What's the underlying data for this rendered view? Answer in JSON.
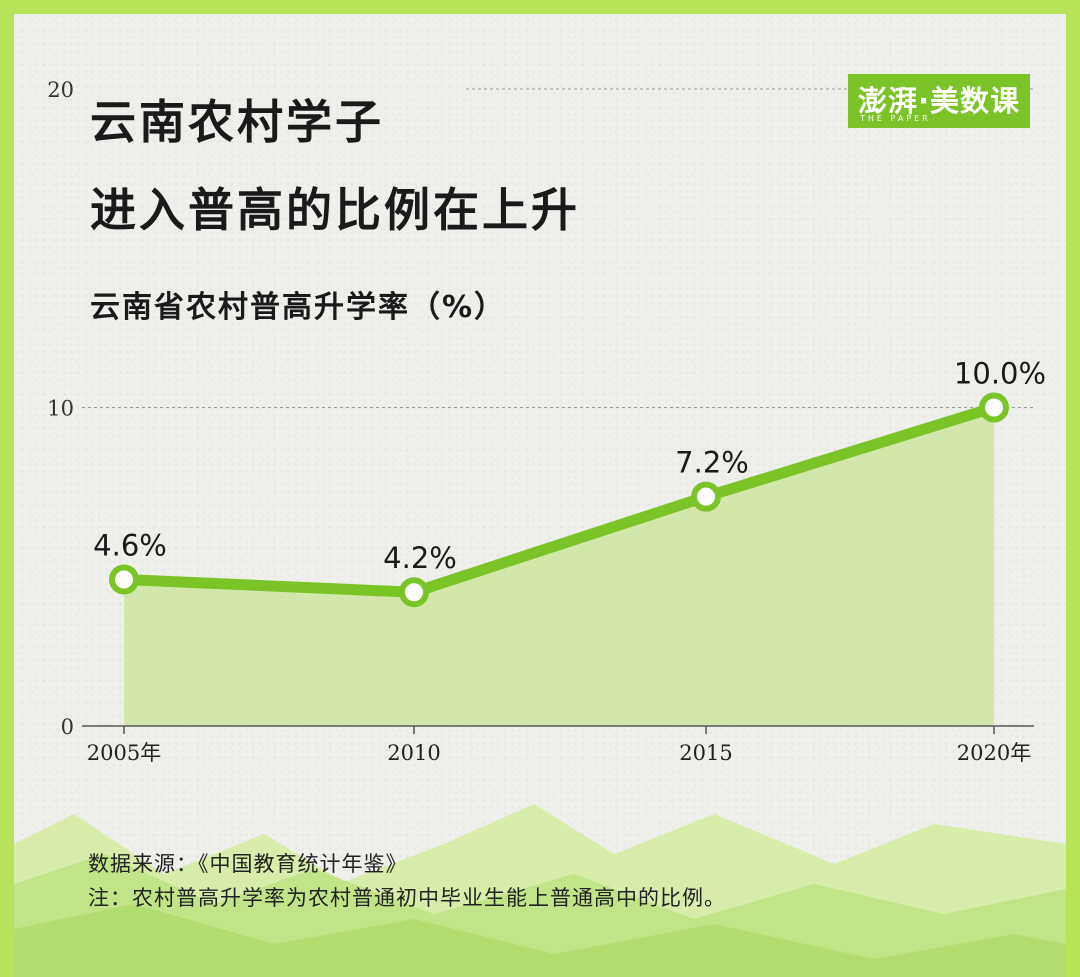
{
  "title_line_1": "云南农村学子",
  "title_line_2": "进入普高的比例在上升",
  "logo": {
    "text": "澎湃·美数课",
    "subtext": "THE PAPER"
  },
  "source": "数据来源：《中国教育统计年鉴》",
  "footnote": "注：农村普高升学率为农村普通初中毕业生能上普通高中的比例。",
  "colors": {
    "frame": "#b8e25a",
    "line": "#7bc428",
    "area": "#cfe6a4",
    "background": "#efefec"
  },
  "chart_data": {
    "type": "area",
    "title": "云南省农村普高升学率（%）",
    "categories": [
      "2005年",
      "2010",
      "2015",
      "2020年"
    ],
    "values": [
      4.6,
      4.2,
      7.2,
      10.0
    ],
    "data_labels": [
      "4.6%",
      "4.2%",
      "7.2%",
      "10.0%"
    ],
    "yticks": [
      "0",
      "10",
      "20"
    ],
    "ytick_values": [
      0,
      10,
      20
    ],
    "ylim": [
      0,
      20
    ],
    "grid": true
  }
}
